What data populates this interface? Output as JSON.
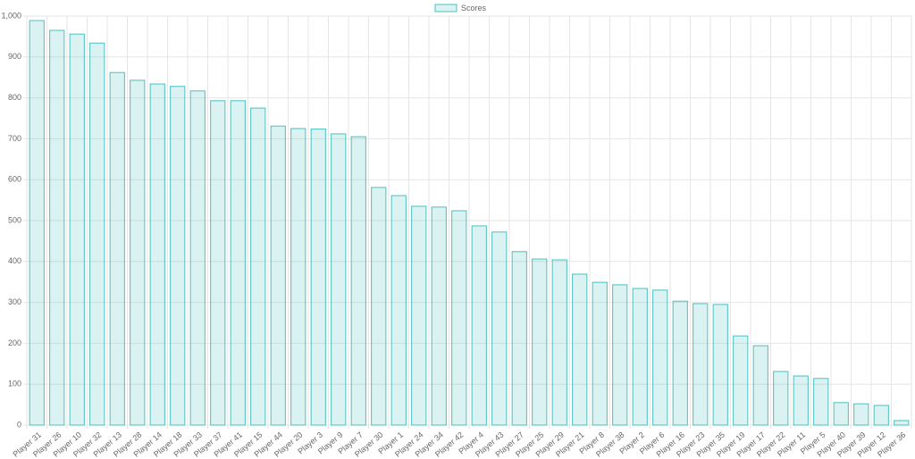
{
  "chart_data": {
    "type": "bar",
    "categories": [
      "Player 31",
      "Player 26",
      "Player 10",
      "Player 32",
      "Player 13",
      "Player 28",
      "Player 14",
      "Player 18",
      "Player 33",
      "Player 37",
      "Player 41",
      "Player 15",
      "Player 44",
      "Player 20",
      "Player 3",
      "Player 9",
      "Player 7",
      "Player 30",
      "Player 1",
      "Player 24",
      "Player 34",
      "Player 42",
      "Player 4",
      "Player 43",
      "Player 27",
      "Player 25",
      "Player 29",
      "Player 21",
      "Player 8",
      "Player 38",
      "Player 2",
      "Player 6",
      "Player 16",
      "Player 23",
      "Player 35",
      "Player 19",
      "Player 17",
      "Player 22",
      "Player 11",
      "Player 5",
      "Player 40",
      "Player 39",
      "Player 12",
      "Player 36"
    ],
    "series": [
      {
        "name": "Scores",
        "color": "#4bc0c0",
        "values": [
          989,
          965,
          956,
          934,
          862,
          843,
          834,
          828,
          817,
          793,
          793,
          775,
          731,
          725,
          724,
          712,
          705,
          581,
          561,
          535,
          533,
          524,
          487,
          472,
          424,
          406,
          404,
          369,
          349,
          343,
          334,
          330,
          303,
          297,
          295,
          218,
          194,
          131,
          120,
          114,
          55,
          52,
          48,
          11
        ]
      }
    ],
    "ylim": [
      0,
      1000
    ],
    "yticks": [
      0,
      100,
      200,
      300,
      400,
      500,
      600,
      700,
      800,
      900,
      {
        "value": 1000,
        "label": "1,000"
      }
    ],
    "grid": true
  }
}
